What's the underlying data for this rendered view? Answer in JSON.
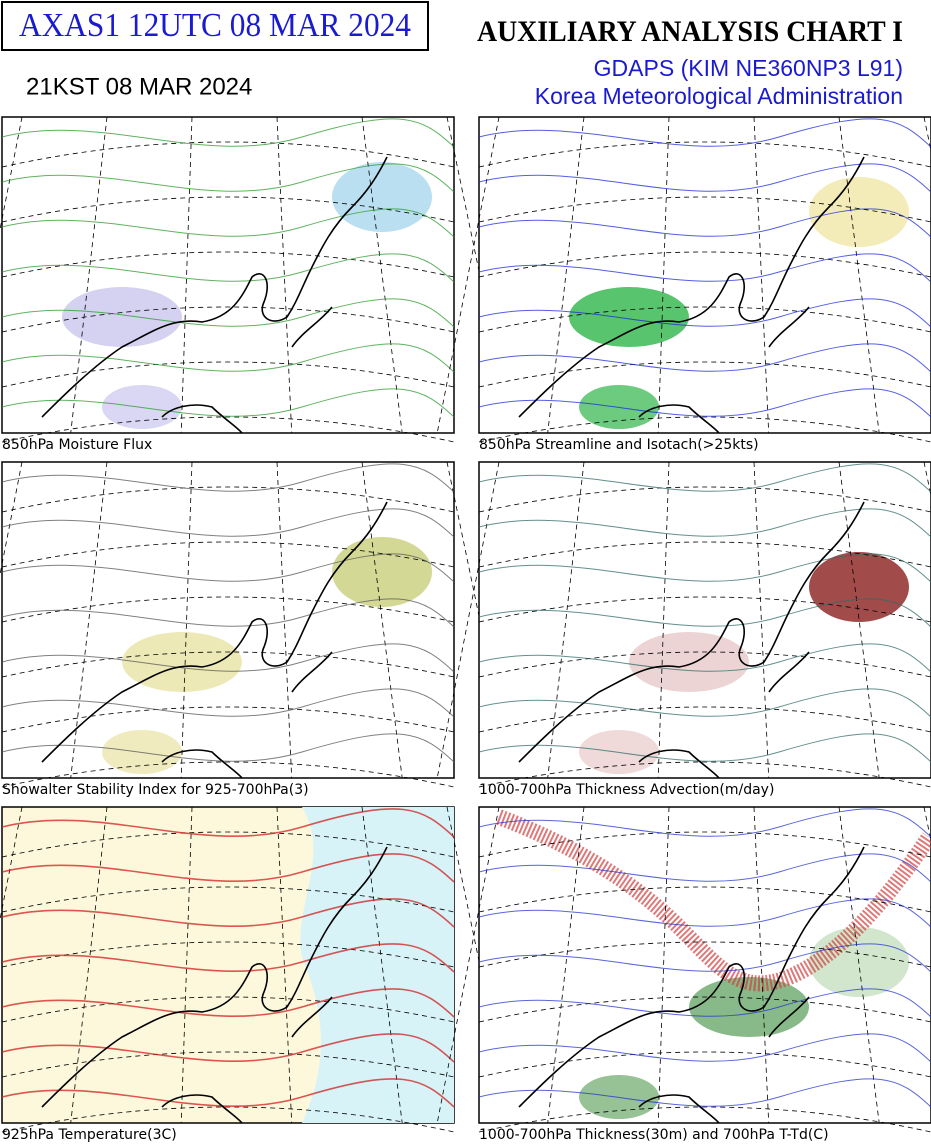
{
  "header": {
    "code": "AXAS1  12UTC 08 MAR 2024",
    "local_time": "21KST 08 MAR 2024",
    "title": "AUXILIARY ANALYSIS CHART  I",
    "model": "GDAPS (KIM NE360NP3 L91)",
    "agency": "Korea Meteorological Administration"
  },
  "panels": [
    {
      "caption": "850hPa Moisture Flux"
    },
    {
      "caption": "850hPa Streamline and Isotach(>25kts)"
    },
    {
      "caption": "Showalter Stability Index for 925-700hPa(3)"
    },
    {
      "caption": "1000-700hPa Thickness Advection(m/day)"
    },
    {
      "caption": "925hPa Temperature(3C)"
    },
    {
      "caption": "1000-700hPa Thickness(30m) and 700hPa T-Td(C)"
    }
  ]
}
